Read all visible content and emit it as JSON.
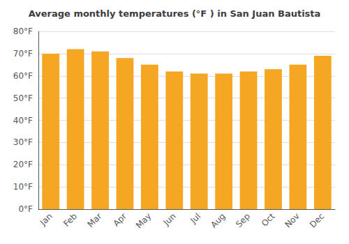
{
  "chart_data": {
    "type": "bar",
    "title": "Average monthly temperatures (°F ) in San Juan Bautista",
    "categories": [
      "Jan",
      "Feb",
      "Mar",
      "Apr",
      "May",
      "Jun",
      "Jul",
      "Aug",
      "Sep",
      "Oct",
      "Nov",
      "Dec"
    ],
    "values": [
      70,
      72,
      71,
      68,
      65,
      62,
      61,
      61,
      62,
      63,
      65,
      69
    ],
    "color": "#F5A623",
    "ylim": [
      0,
      80
    ],
    "yticks": [
      {
        "value": 0,
        "label": "0°F"
      },
      {
        "value": 10,
        "label": "10°F"
      },
      {
        "value": 20,
        "label": "20°F"
      },
      {
        "value": 30,
        "label": "30°F"
      },
      {
        "value": 40,
        "label": "40°F"
      },
      {
        "value": 50,
        "label": "50°F"
      },
      {
        "value": 60,
        "label": "60°F"
      },
      {
        "value": 70,
        "label": "70°F"
      },
      {
        "value": 80,
        "label": "80°F"
      }
    ],
    "grid": true
  }
}
